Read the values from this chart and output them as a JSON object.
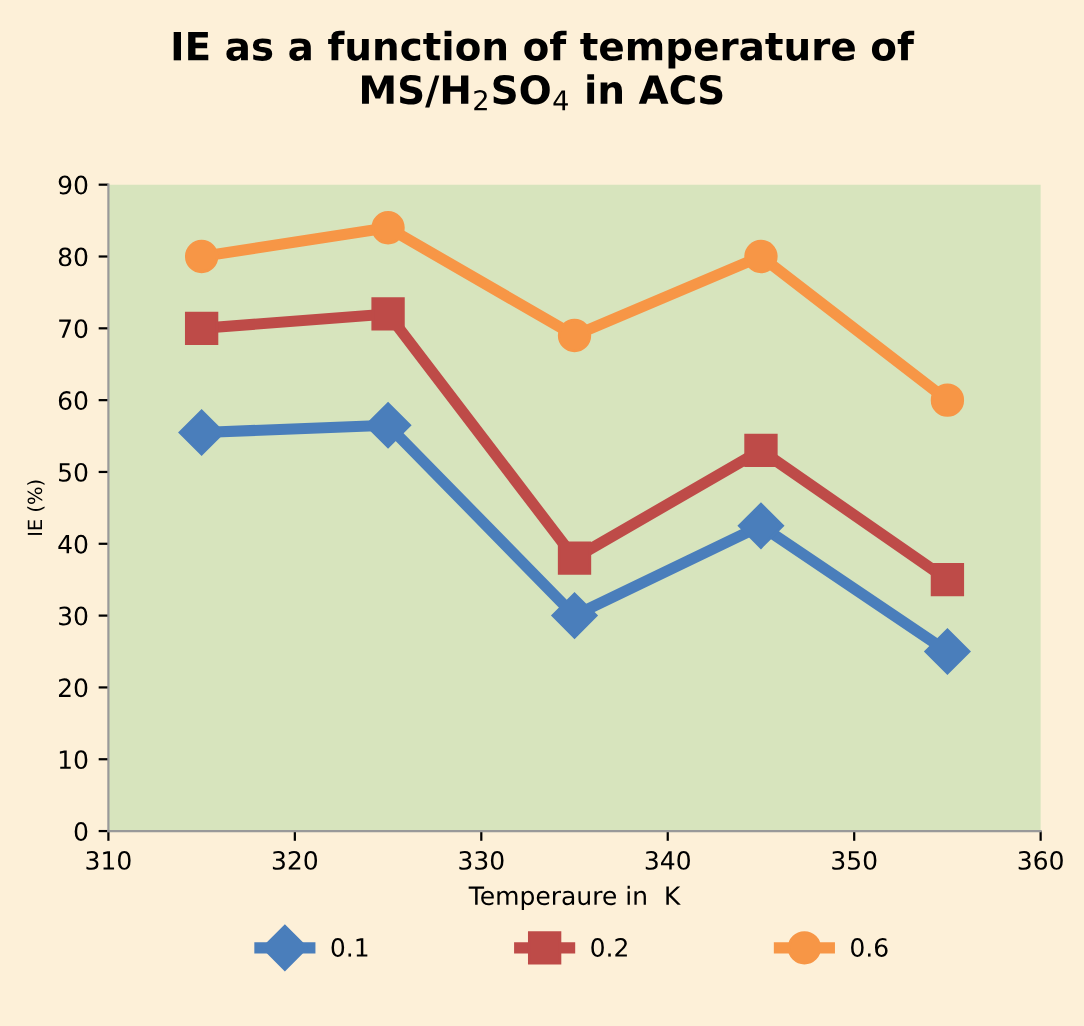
{
  "chart_data": {
    "type": "line",
    "title": "IE as a function of temperature of\nMS/H$_{2}$SO$_{4}$ in ACS",
    "xlabel": "Temperaure in  K",
    "ylabel": "IE (%)",
    "x": [
      315,
      325,
      335,
      345,
      355
    ],
    "series": [
      {
        "name": "0.1",
        "color": "#4a7ebb",
        "values": [
          55.5,
          56.5,
          30,
          42.5,
          25
        ],
        "marker": "diamond"
      },
      {
        "name": "0.2",
        "color": "#be4b48",
        "values": [
          70,
          72,
          38,
          53,
          35
        ],
        "marker": "square"
      },
      {
        "name": "0.6",
        "color": "#f79646",
        "values": [
          80,
          84,
          69,
          80,
          60
        ],
        "marker": "circle"
      }
    ],
    "xlim": [
      310,
      360
    ],
    "xticks": [
      310,
      320,
      330,
      340,
      350,
      360
    ],
    "ylim": [
      0,
      90
    ],
    "yticks": [
      0,
      10,
      20,
      30,
      40,
      50,
      60,
      70,
      80,
      90
    ],
    "grid": false,
    "legend": "bottom",
    "line_style": "solid"
  }
}
